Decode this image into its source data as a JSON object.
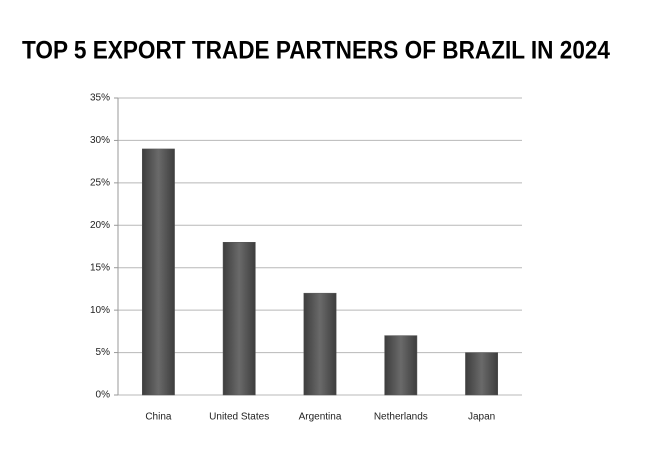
{
  "chart_data": {
    "type": "bar",
    "title": "TOP  5 EXPORT TRADE PARTNERS OF BRAZIL IN 2024",
    "categories": [
      "China",
      "United States",
      "Argentina",
      "Netherlands",
      "Japan"
    ],
    "values": [
      29,
      18,
      12,
      7,
      5
    ],
    "color": "#555555",
    "ylim": [
      0,
      35
    ],
    "yticks": [
      {
        "value": 0,
        "label": "0%"
      },
      {
        "value": 5,
        "label": "5%"
      },
      {
        "value": 10,
        "label": "10%"
      },
      {
        "value": 15,
        "label": "15%"
      },
      {
        "value": 20,
        "label": "20%"
      },
      {
        "value": 25,
        "label": "25%"
      },
      {
        "value": 30,
        "label": "30%"
      },
      {
        "value": 35,
        "label": "35%"
      }
    ],
    "grid": true
  }
}
